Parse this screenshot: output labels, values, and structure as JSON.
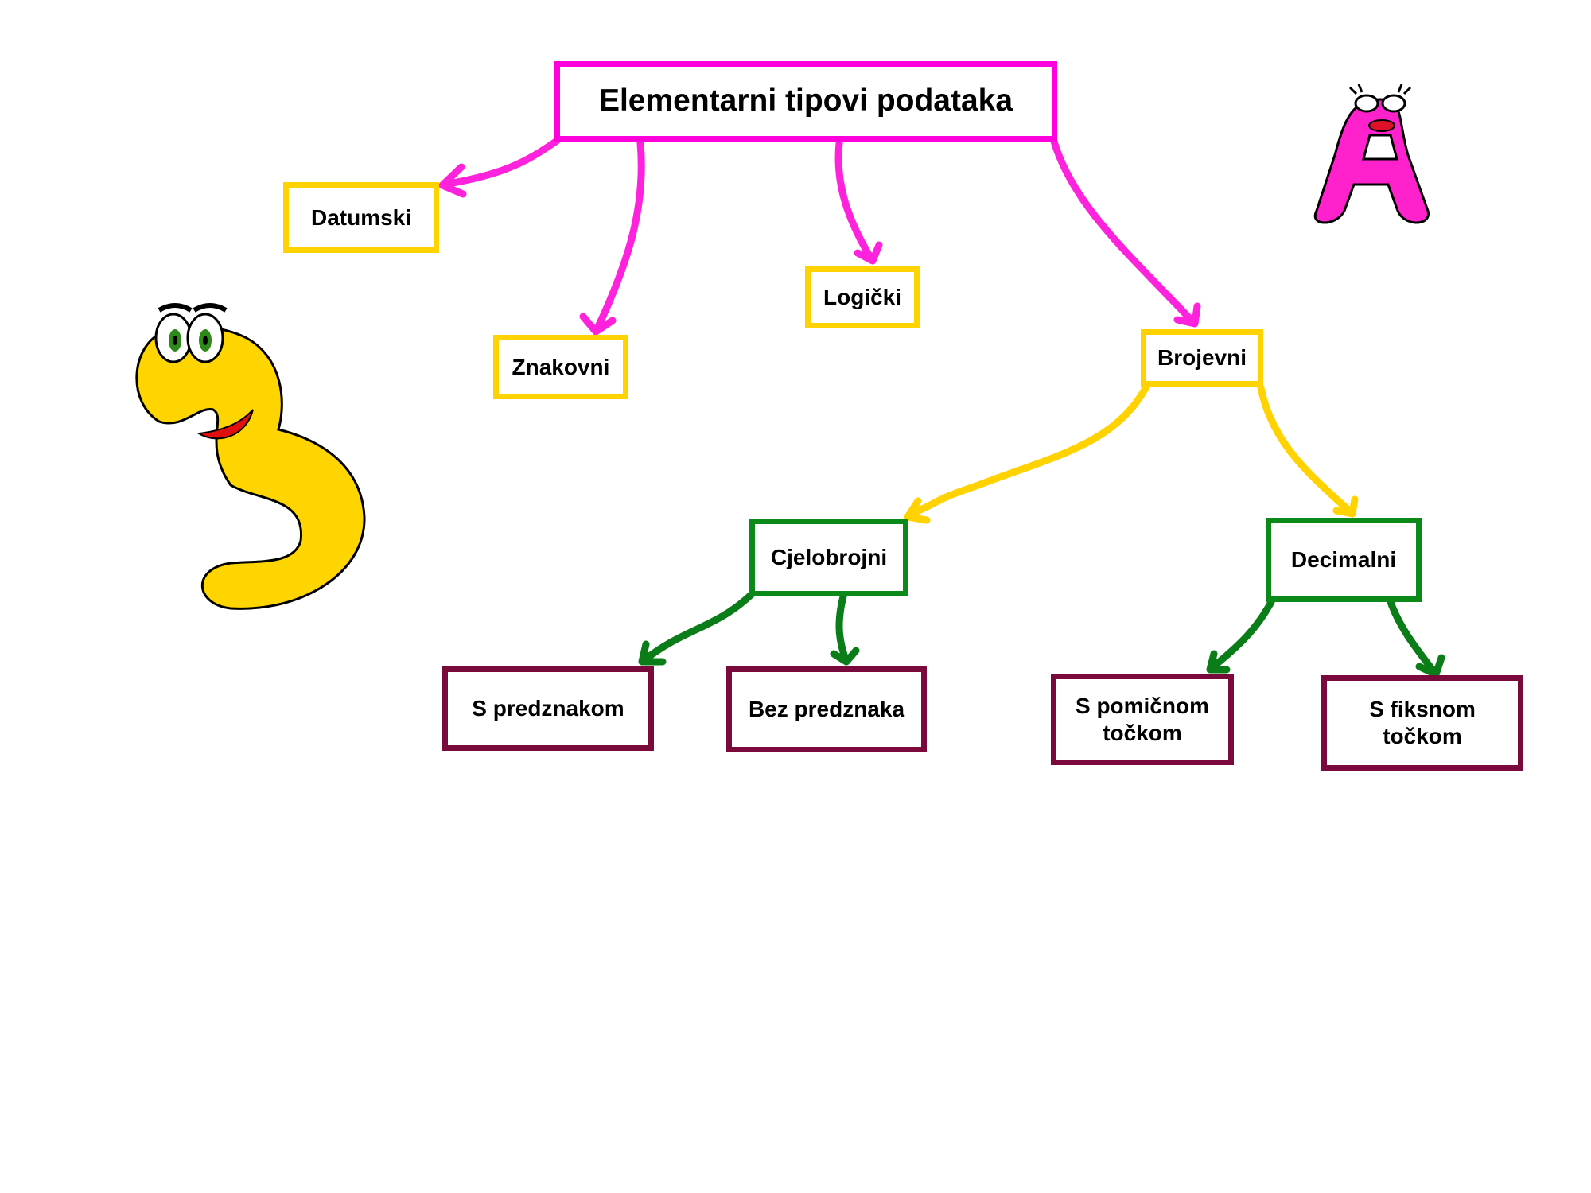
{
  "diagram": {
    "title": "Elementarni tipovi podataka",
    "nodes": {
      "datumski": "Datumski",
      "znakovni": "Znakovni",
      "logicki": "Logički",
      "brojevni": "Brojevni",
      "cjelobrojni": "Cjelobrojni",
      "decimalni": "Decimalni",
      "s_predznakom": "S predznakom",
      "bez_predznaka": "Bez predznaka",
      "s_pomicnom": "S pomičnom točkom",
      "s_fiksnom": "S fiksnom točkom"
    },
    "edges": [
      {
        "from": "title",
        "to": "datumski"
      },
      {
        "from": "title",
        "to": "znakovni"
      },
      {
        "from": "title",
        "to": "logicki"
      },
      {
        "from": "title",
        "to": "brojevni"
      },
      {
        "from": "brojevni",
        "to": "cjelobrojni"
      },
      {
        "from": "brojevni",
        "to": "decimalni"
      },
      {
        "from": "cjelobrojni",
        "to": "s_predznakom"
      },
      {
        "from": "cjelobrojni",
        "to": "bez_predznaka"
      },
      {
        "from": "decimalni",
        "to": "s_pomicnom"
      },
      {
        "from": "decimalni",
        "to": "s_fiksnom"
      }
    ],
    "colors": {
      "root_border": "#ff00dd",
      "level1_border": "#ffd200",
      "level2_border": "#0b8a1a",
      "level3_border": "#7a0a3c",
      "mascot_a": "#ff22cc",
      "mascot_3": "#ffd500"
    },
    "decorations": [
      "cartoon-letter-a-icon",
      "cartoon-number-3-icon"
    ]
  }
}
